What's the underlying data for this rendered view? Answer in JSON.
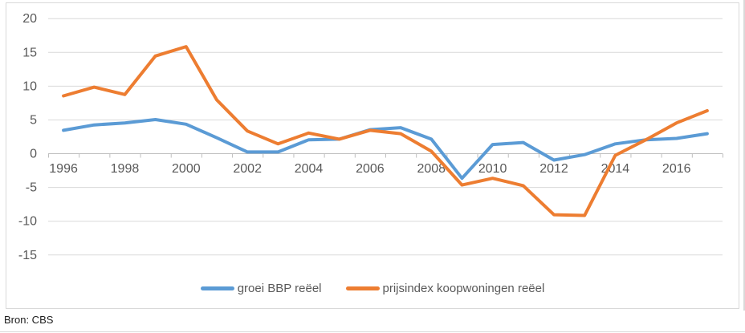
{
  "chart_data": {
    "type": "line",
    "title": "",
    "xlabel": "",
    "ylabel": "",
    "x": [
      1996,
      1997,
      1998,
      1999,
      2000,
      2001,
      2002,
      2003,
      2004,
      2005,
      2006,
      2007,
      2008,
      2009,
      2010,
      2011,
      2012,
      2013,
      2014,
      2015,
      2016,
      2017
    ],
    "x_axis_labels": [
      "1996",
      "1998",
      "2000",
      "2002",
      "2004",
      "2006",
      "2008",
      "2010",
      "2012",
      "2014",
      "2016"
    ],
    "y_axis_labels": [
      "20",
      "15",
      "10",
      "5",
      "0",
      "-5",
      "-10",
      "-15"
    ],
    "y_ticks": [
      20,
      15,
      10,
      5,
      0,
      -5,
      -10,
      -15
    ],
    "ylim": [
      -15,
      20
    ],
    "grid": true,
    "legend_position": "bottom",
    "series": [
      {
        "name": "groei BBP reëel",
        "color": "#5B9BD5",
        "values": [
          3.4,
          4.2,
          4.5,
          5.0,
          4.3,
          2.3,
          0.2,
          0.2,
          2.0,
          2.1,
          3.5,
          3.8,
          2.1,
          -3.7,
          1.3,
          1.6,
          -1.0,
          -0.2,
          1.4,
          2.0,
          2.2,
          2.9
        ]
      },
      {
        "name": "prijsindex koopwoningen reëel",
        "color": "#ED7D31",
        "values": [
          8.5,
          9.8,
          8.7,
          14.4,
          15.8,
          7.9,
          3.3,
          1.4,
          3.0,
          2.1,
          3.4,
          2.9,
          0.3,
          -4.7,
          -3.7,
          -4.8,
          -9.1,
          -9.2,
          -0.3,
          2.0,
          4.5,
          6.3
        ]
      }
    ]
  },
  "colors": {
    "background": "#FFFFFF",
    "chart_border": "#D9D9D9",
    "gridline": "#D9D9D9",
    "axis_line": "#BFBFBF",
    "tick_label": "#595959",
    "legend_text": "#595959",
    "series_blue": "#5B9BD5",
    "series_orange": "#ED7D31",
    "source_text": "#1A1A1A"
  },
  "source": {
    "label": "Bron: CBS"
  }
}
